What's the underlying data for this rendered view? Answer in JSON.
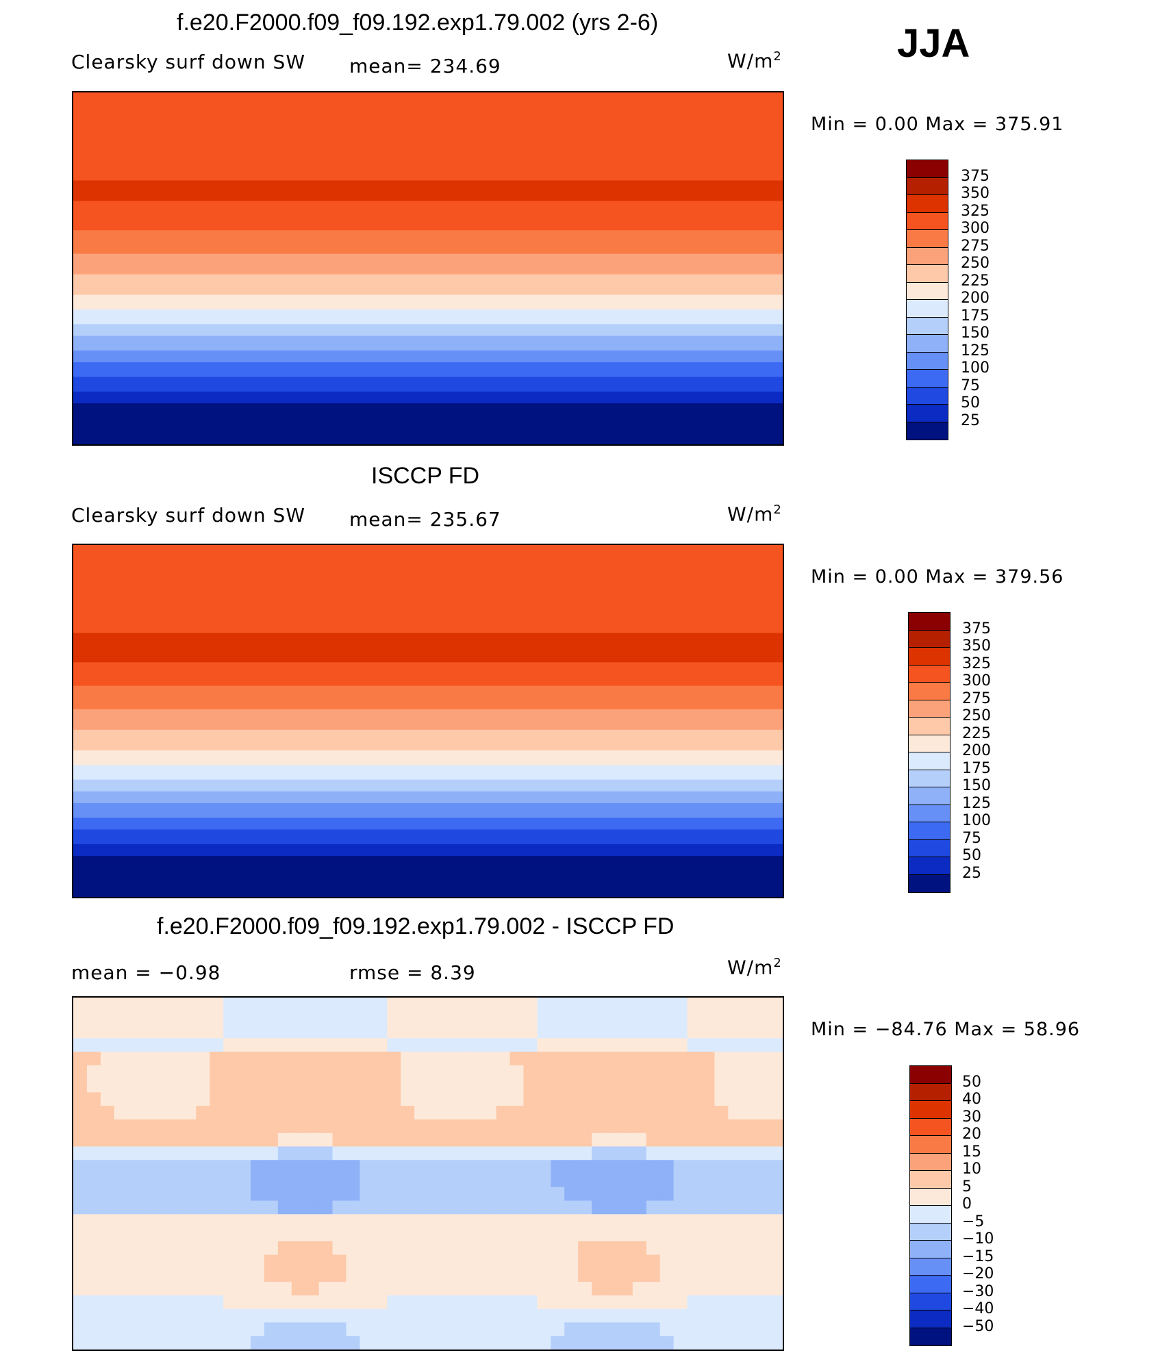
{
  "season": "JJA",
  "panels": [
    {
      "title": "f.e20.F2000.f09_f09.192.exp1.79.002 (yrs 2-6)",
      "left_label": "Clearsky surf down SW",
      "mid_label": "mean= 234.69",
      "units": "W/m",
      "units_exp": "2",
      "minmax": "Min =    0.00 Max = 375.91",
      "levels": [
        "375",
        "350",
        "325",
        "300",
        "275",
        "250",
        "225",
        "200",
        "175",
        "150",
        "125",
        "100",
        "75",
        "50",
        "25"
      ],
      "colors": [
        "#8b0000",
        "#b52000",
        "#dc3300",
        "#f55420",
        "#fa7a45",
        "#fca27a",
        "#fdc9a8",
        "#fde9da",
        "#dbeafc",
        "#b5cffb",
        "#8eb1f8",
        "#6690f5",
        "#3d6af2",
        "#1f49e0",
        "#0b2bc2",
        "#00127f"
      ]
    },
    {
      "title": "ISCCP FD",
      "left_label": "Clearsky surf down SW",
      "mid_label": "mean= 235.67",
      "units": "W/m",
      "units_exp": "2",
      "minmax": "Min =    0.00 Max = 379.56",
      "levels": [
        "375",
        "350",
        "325",
        "300",
        "275",
        "250",
        "225",
        "200",
        "175",
        "150",
        "125",
        "100",
        "75",
        "50",
        "25"
      ],
      "colors": [
        "#8b0000",
        "#b52000",
        "#dc3300",
        "#f55420",
        "#fa7a45",
        "#fca27a",
        "#fdc9a8",
        "#fde9da",
        "#dbeafc",
        "#b5cffb",
        "#8eb1f8",
        "#6690f5",
        "#3d6af2",
        "#1f49e0",
        "#0b2bc2",
        "#00127f"
      ]
    },
    {
      "title": "f.e20.F2000.f09_f09.192.exp1.79.002 - ISCCP FD",
      "left_label": "mean =   −0.98",
      "mid_label": "rmse =    8.39",
      "units": "W/m",
      "units_exp": "2",
      "minmax": "Min = −84.76 Max =  58.96",
      "levels": [
        "50",
        "40",
        "30",
        "20",
        "15",
        "10",
        "5",
        "0",
        "−5",
        "−10",
        "−15",
        "−20",
        "−30",
        "−40",
        "−50"
      ],
      "colors": [
        "#8b0000",
        "#b52000",
        "#dc3300",
        "#f55420",
        "#fa7a45",
        "#fca27a",
        "#fdc9a8",
        "#fde9da",
        "#dbeafc",
        "#b5cffb",
        "#8eb1f8",
        "#6690f5",
        "#3d6af2",
        "#1f49e0",
        "#0b2bc2",
        "#00127f"
      ]
    }
  ],
  "chart_data": [
    {
      "type": "heatmap",
      "title": "f.e20.F2000.f09_f09.192.exp1.79.002 (yrs 2-6)",
      "subtitle": "Clearsky surf down SW",
      "mean": 234.69,
      "units": "W/m2",
      "min": 0.0,
      "max": 375.91,
      "contour_levels": [
        25,
        50,
        75,
        100,
        125,
        150,
        175,
        200,
        225,
        250,
        275,
        300,
        325,
        350,
        375
      ],
      "zonal_profile": {
        "lat": [
          90,
          80,
          70,
          60,
          50,
          40,
          30,
          20,
          10,
          0,
          -10,
          -20,
          -30,
          -40,
          -50,
          -60,
          -70,
          -80,
          -90
        ],
        "values": [
          300,
          300,
          300,
          310,
          320,
          330,
          320,
          300,
          280,
          255,
          235,
          205,
          170,
          130,
          95,
          60,
          20,
          0,
          0
        ]
      }
    },
    {
      "type": "heatmap",
      "title": "ISCCP FD",
      "subtitle": "Clearsky surf down SW",
      "mean": 235.67,
      "units": "W/m2",
      "min": 0.0,
      "max": 379.56,
      "contour_levels": [
        25,
        50,
        75,
        100,
        125,
        150,
        175,
        200,
        225,
        250,
        275,
        300,
        325,
        350,
        375
      ],
      "zonal_profile": {
        "lat": [
          90,
          80,
          70,
          60,
          50,
          40,
          30,
          20,
          10,
          0,
          -10,
          -20,
          -30,
          -40,
          -50,
          -60,
          -70,
          -80,
          -90
        ],
        "values": [
          300,
          300,
          300,
          310,
          320,
          330,
          325,
          305,
          285,
          260,
          240,
          210,
          175,
          135,
          95,
          60,
          20,
          0,
          0
        ]
      }
    },
    {
      "type": "heatmap",
      "title": "f.e20.F2000.f09_f09.192.exp1.79.002 - ISCCP FD",
      "mean": -0.98,
      "rmse": 8.39,
      "units": "W/m2",
      "min": -84.76,
      "max": 58.96,
      "contour_levels": [
        -50,
        -40,
        -30,
        -20,
        -15,
        -10,
        -5,
        0,
        5,
        10,
        15,
        20,
        30,
        40,
        50
      ]
    }
  ]
}
